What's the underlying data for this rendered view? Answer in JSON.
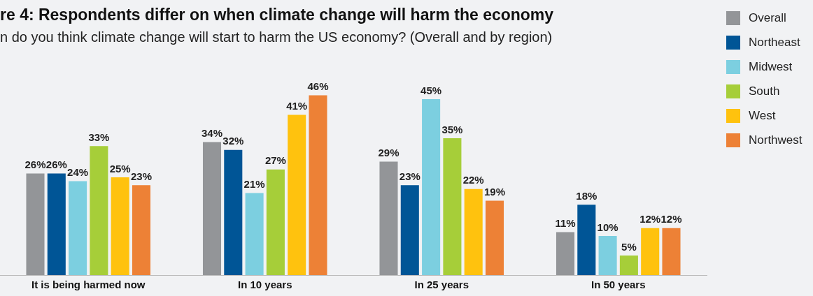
{
  "chart_data": {
    "type": "bar",
    "title": "re 4: Respondents differ on when climate change will harm the economy",
    "subtitle": "n do you think climate change will start to harm the US economy? (Overall and by region)",
    "categories": [
      "It is being harmed now",
      "In 10 years",
      "In 25 years",
      "In 50 years"
    ],
    "series": [
      {
        "name": "Overall",
        "color": "#939598",
        "values": [
          26,
          34,
          29,
          11
        ],
        "value_labels": [
          "26%",
          "34%",
          "29%",
          "11%"
        ]
      },
      {
        "name": "Northeast",
        "color": "#005596",
        "values": [
          26,
          32,
          23,
          18
        ],
        "value_labels": [
          "26%",
          "32%",
          "23%",
          "18%"
        ]
      },
      {
        "name": "Midwest",
        "color": "#7ccfe0",
        "values": [
          24,
          21,
          45,
          10
        ],
        "value_labels": [
          "24%",
          "21%",
          "45%",
          "10%"
        ]
      },
      {
        "name": "South",
        "color": "#a6ce39",
        "values": [
          33,
          27,
          35,
          5
        ],
        "value_labels": [
          "33%",
          "27%",
          "35%",
          "5%"
        ]
      },
      {
        "name": "West",
        "color": "#ffc20e",
        "values": [
          25,
          41,
          22,
          12
        ],
        "value_labels": [
          "25%",
          "41%",
          "22%",
          "12%"
        ]
      },
      {
        "name": "Northwest",
        "color": "#ed8136",
        "values": [
          23,
          46,
          19,
          12
        ],
        "value_labels": [
          "23%",
          "46%",
          "19%",
          "12%"
        ]
      }
    ],
    "legend": "right",
    "grid": false
  }
}
